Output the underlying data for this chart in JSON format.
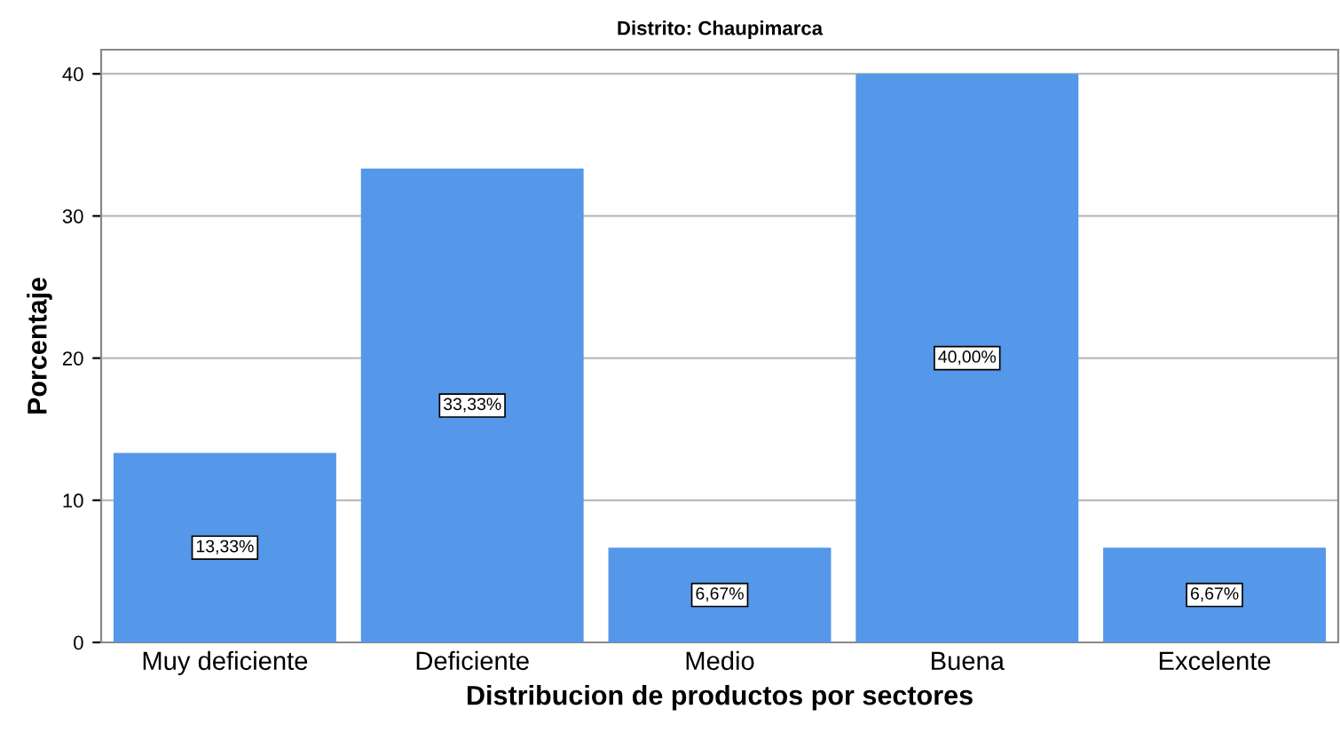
{
  "chart_data": {
    "type": "bar",
    "title": "Distrito: Chaupimarca",
    "xlabel": "Distribucion de productos por sectores",
    "ylabel": "Porcentaje",
    "categories": [
      "Muy deficiente",
      "Deficiente",
      "Medio",
      "Buena",
      "Excelente"
    ],
    "values": [
      13.33,
      33.33,
      6.67,
      40.0,
      6.67
    ],
    "value_labels": [
      "13,33%",
      "33,33%",
      "6,67%",
      "40,00%",
      "6,67%"
    ],
    "color": "#5597e8",
    "ylim": [
      0,
      41.7
    ],
    "yticks": [
      0,
      10,
      20,
      30,
      40
    ],
    "grid": "y"
  }
}
